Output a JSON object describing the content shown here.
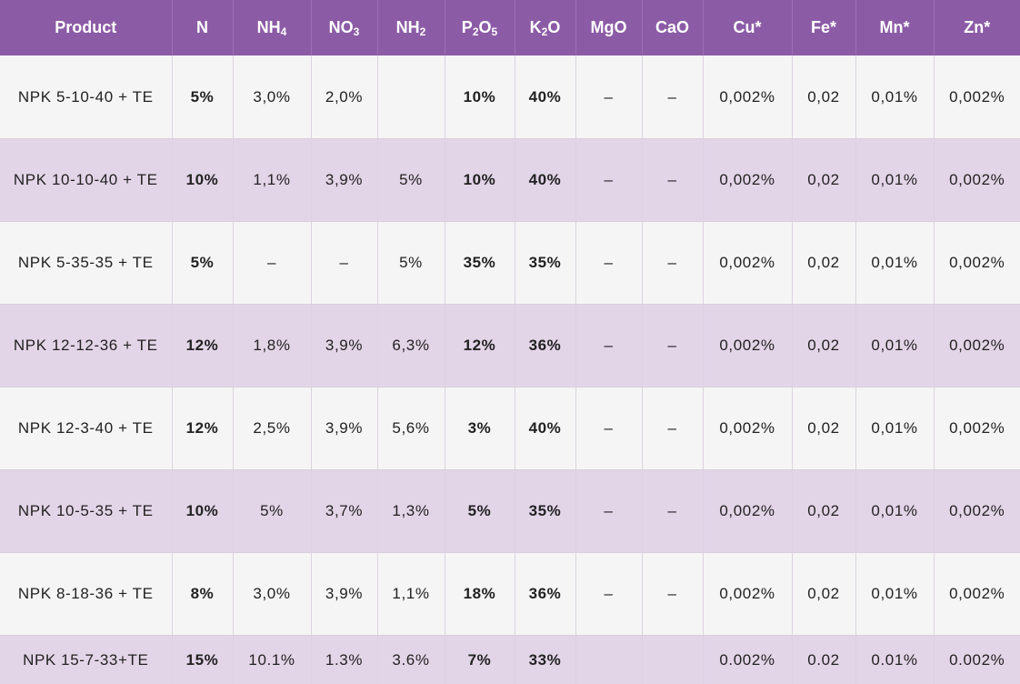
{
  "table": {
    "headers": [
      {
        "main": "Product",
        "sub1": "",
        "mid": "",
        "sub2": "",
        "tail": ""
      },
      {
        "main": "N",
        "sub1": "",
        "mid": "",
        "sub2": "",
        "tail": ""
      },
      {
        "main": "NH",
        "sub1": "4",
        "mid": "",
        "sub2": "",
        "tail": ""
      },
      {
        "main": "NO",
        "sub1": "3",
        "mid": "",
        "sub2": "",
        "tail": ""
      },
      {
        "main": "NH",
        "sub1": "2",
        "mid": "",
        "sub2": "",
        "tail": ""
      },
      {
        "main": "P",
        "sub1": "2",
        "mid": "O",
        "sub2": "5",
        "tail": ""
      },
      {
        "main": "K",
        "sub1": "2",
        "mid": "O",
        "sub2": "",
        "tail": ""
      },
      {
        "main": "MgO",
        "sub1": "",
        "mid": "",
        "sub2": "",
        "tail": ""
      },
      {
        "main": "CaO",
        "sub1": "",
        "mid": "",
        "sub2": "",
        "tail": ""
      },
      {
        "main": "Cu*",
        "sub1": "",
        "mid": "",
        "sub2": "",
        "tail": ""
      },
      {
        "main": "Fe*",
        "sub1": "",
        "mid": "",
        "sub2": "",
        "tail": ""
      },
      {
        "main": "Mn*",
        "sub1": "",
        "mid": "",
        "sub2": "",
        "tail": ""
      },
      {
        "main": "Zn*",
        "sub1": "",
        "mid": "",
        "sub2": "",
        "tail": ""
      }
    ],
    "rows": [
      [
        "NPK 5-10-40 + TE",
        "5%",
        "3,0%",
        "2,0%",
        "",
        "10%",
        "40%",
        "–",
        "–",
        "0,002%",
        "0,02",
        "0,01%",
        "0,002%"
      ],
      [
        "NPK 10-10-40 + TE",
        "10%",
        "1,1%",
        "3,9%",
        "5%",
        "10%",
        "40%",
        "–",
        "–",
        "0,002%",
        "0,02",
        "0,01%",
        "0,002%"
      ],
      [
        "NPK 5-35-35 + TE",
        "5%",
        "–",
        "–",
        "5%",
        "35%",
        "35%",
        "–",
        "–",
        "0,002%",
        "0,02",
        "0,01%",
        "0,002%"
      ],
      [
        "NPK 12-12-36 + TE",
        "12%",
        "1,8%",
        "3,9%",
        "6,3%",
        "12%",
        "36%",
        "–",
        "–",
        "0,002%",
        "0,02",
        "0,01%",
        "0,002%"
      ],
      [
        "NPK 12-3-40 + TE",
        "12%",
        "2,5%",
        "3,9%",
        "5,6%",
        "3%",
        "40%",
        "–",
        "–",
        "0,002%",
        "0,02",
        "0,01%",
        "0,002%"
      ],
      [
        "NPK 10-5-35 + TE",
        "10%",
        "5%",
        "3,7%",
        "1,3%",
        "5%",
        "35%",
        "–",
        "–",
        "0,002%",
        "0,02",
        "0,01%",
        "0,002%"
      ],
      [
        "NPK 8-18-36 + TE",
        "8%",
        "3,0%",
        "3,9%",
        "1,1%",
        "18%",
        "36%",
        "–",
        "–",
        "0,002%",
        "0,02",
        "0,01%",
        "0,002%"
      ],
      [
        "NPK 15-7-33+TE",
        "15%",
        "10.1%",
        "1.3%",
        "3.6%",
        "7%",
        "33%",
        "",
        "",
        "0.002%",
        "0.02",
        "0.01%",
        "0.002%"
      ]
    ]
  }
}
